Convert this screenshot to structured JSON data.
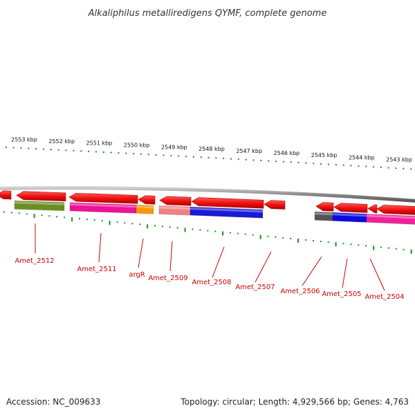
{
  "title": "Alkaliphilus metalliredigens QYMF, complete genome",
  "footer": {
    "accession": "Accession: NC_009633",
    "summary": "Topology: circular; Length: 4,929,566 bp; Genes: 4,763"
  },
  "colors": {
    "backbone": "#8a8a8a",
    "cds": "#ee1111",
    "tick": "#1f8a1f",
    "label": "#cc0000"
  },
  "ruler": [
    {
      "label": "2553 kbp",
      "kbp": 2553
    },
    {
      "label": "2552 kbp",
      "kbp": 2552
    },
    {
      "label": "2551 kbp",
      "kbp": 2551
    },
    {
      "label": "2550 kbp",
      "kbp": 2550
    },
    {
      "label": "2549 kbp",
      "kbp": 2549
    },
    {
      "label": "2548 kbp",
      "kbp": 2548
    },
    {
      "label": "2547 kbp",
      "kbp": 2547
    },
    {
      "label": "2546 kbp",
      "kbp": 2546
    },
    {
      "label": "2545 kbp",
      "kbp": 2545
    },
    {
      "label": "2544 kbp",
      "kbp": 2544
    },
    {
      "label": "2543 kbp",
      "kbp": 2543
    }
  ],
  "genes": [
    {
      "label": "Amet_2512",
      "cog_color": "#6b8e23"
    },
    {
      "label": "Amet_2511",
      "cog_color": "#ee1199"
    },
    {
      "label": "argR",
      "cog_color": "#ff9900"
    },
    {
      "label": "Amet_2509",
      "cog_color": "#f08080"
    },
    {
      "label": "Amet_2508",
      "cog_color": "#1a1ad6"
    },
    {
      "label": "Amet_2507",
      "cog_color": ""
    },
    {
      "label": "Amet_2506",
      "cog_color": "#555555"
    },
    {
      "label": "Amet_2505",
      "cog_color": "#0a0ae0"
    },
    {
      "label": "Amet_2504",
      "cog_color": "#ee2299"
    }
  ]
}
